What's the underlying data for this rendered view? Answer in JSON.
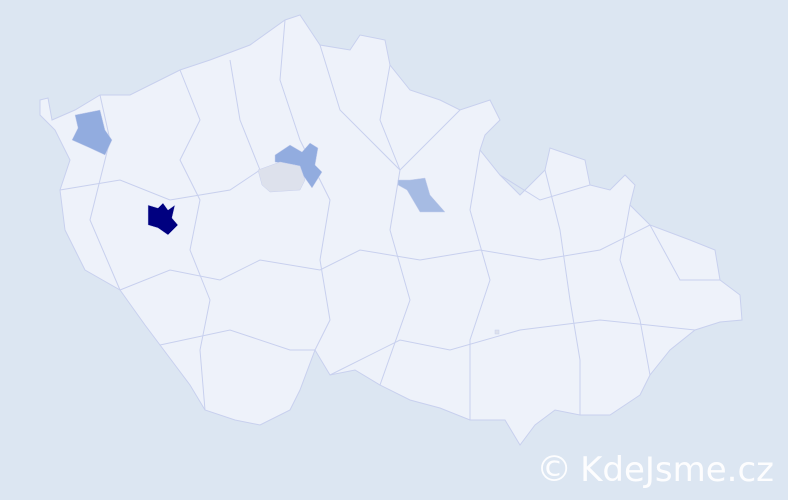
{
  "map": {
    "colors": {
      "background": "#dce6f2",
      "district_fill": "#eef2fa",
      "district_border": "#c8d0ee",
      "highlight_strong": "#000080",
      "highlight_medium": "#92acdf",
      "highlight_light": "#a6bbe3",
      "highlight_pale": "#dde1ec"
    }
  },
  "watermark": {
    "icon": "copyright-icon",
    "copyright_symbol": "©",
    "text": "KdeJsme.cz"
  }
}
